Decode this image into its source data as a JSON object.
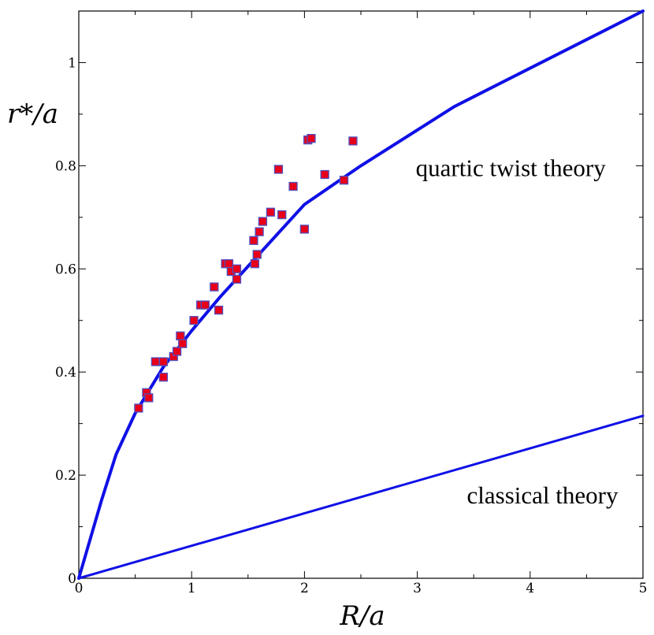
{
  "chart_data": {
    "type": "scatter",
    "xlabel": "R/a",
    "ylabel": "r*/a",
    "xlim": [
      0,
      5
    ],
    "ylim": [
      0,
      1.1
    ],
    "x_ticks": [
      "0",
      "1",
      "2",
      "3",
      "4",
      "5"
    ],
    "y_ticks": [
      "0",
      "0.2",
      "0.4",
      "0.6",
      "0.8",
      "1"
    ],
    "grid": false,
    "legend": "none",
    "series": [
      {
        "kind": "line",
        "color": "#1010e6",
        "points": [
          [
            0,
            0
          ],
          [
            0.2,
            0.15
          ],
          [
            0.33,
            0.24
          ],
          [
            0.5,
            0.32
          ],
          [
            0.75,
            0.41
          ],
          [
            1.0,
            0.48
          ],
          [
            1.25,
            0.545
          ],
          [
            1.5,
            0.605
          ],
          [
            2.0,
            0.725
          ],
          [
            2.5,
            0.8
          ],
          [
            3.33,
            0.915
          ],
          [
            5.0,
            1.1
          ]
        ]
      },
      {
        "kind": "line",
        "color": "#1010e6",
        "points": [
          [
            0,
            0
          ],
          [
            5,
            0.315
          ]
        ]
      },
      {
        "kind": "scatter",
        "color": "#e8001a",
        "edge_color": "#5050c0",
        "points": [
          [
            0.53,
            0.33
          ],
          [
            0.6,
            0.36
          ],
          [
            0.62,
            0.35
          ],
          [
            0.68,
            0.42
          ],
          [
            0.75,
            0.42
          ],
          [
            0.75,
            0.39
          ],
          [
            0.84,
            0.43
          ],
          [
            0.87,
            0.44
          ],
          [
            0.9,
            0.47
          ],
          [
            0.92,
            0.455
          ],
          [
            1.02,
            0.5
          ],
          [
            1.08,
            0.53
          ],
          [
            1.12,
            0.53
          ],
          [
            1.2,
            0.565
          ],
          [
            1.24,
            0.52
          ],
          [
            1.3,
            0.61
          ],
          [
            1.33,
            0.61
          ],
          [
            1.35,
            0.595
          ],
          [
            1.4,
            0.58
          ],
          [
            1.4,
            0.6
          ],
          [
            1.55,
            0.655
          ],
          [
            1.56,
            0.61
          ],
          [
            1.58,
            0.628
          ],
          [
            1.6,
            0.672
          ],
          [
            1.63,
            0.692
          ],
          [
            1.7,
            0.71
          ],
          [
            1.77,
            0.793
          ],
          [
            1.8,
            0.705
          ],
          [
            1.9,
            0.76
          ],
          [
            2.0,
            0.677
          ],
          [
            2.03,
            0.85
          ],
          [
            2.06,
            0.853
          ],
          [
            2.18,
            0.783
          ],
          [
            2.35,
            0.772
          ],
          [
            2.43,
            0.848
          ]
        ]
      }
    ],
    "annotations": [
      {
        "text": "quartic twist theory",
        "x": 4.67,
        "y": 0.78
      },
      {
        "text": "classical theory",
        "x": 4.78,
        "y": 0.145
      }
    ]
  }
}
